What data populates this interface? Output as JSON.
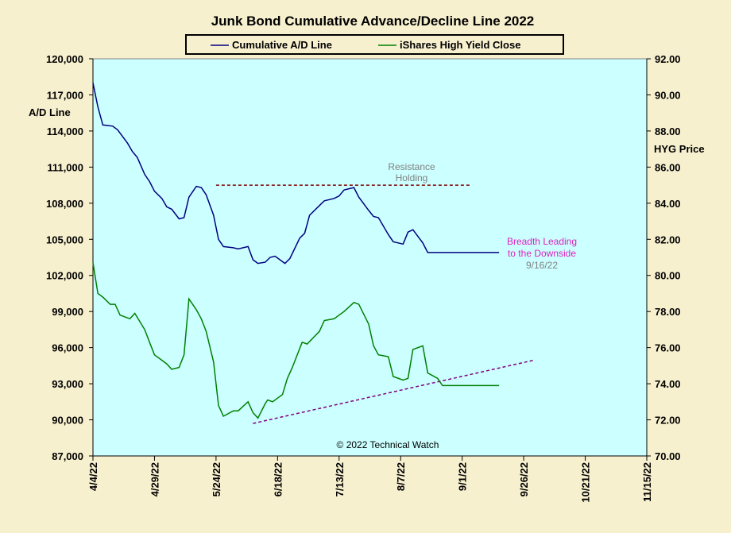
{
  "chart_data": {
    "type": "line",
    "title": "Junk Bond Cumulative Advance/Decline Line 2022",
    "x_ticks": [
      "4/4/22",
      "4/29/22",
      "5/24/22",
      "6/18/22",
      "7/13/22",
      "8/7/22",
      "9/1/22",
      "9/26/22",
      "10/21/22",
      "11/15/22"
    ],
    "xlim": [
      "4/4/22",
      "11/15/22"
    ],
    "left_axis": {
      "label": "A/D Line",
      "ylim": [
        87000,
        120000
      ],
      "ticks": [
        "87,000",
        "90,000",
        "93,000",
        "96,000",
        "99,000",
        "102,000",
        "105,000",
        "108,000",
        "111,000",
        "114,000",
        "117,000",
        "120,000"
      ]
    },
    "right_axis": {
      "label": "HYG Price",
      "ylim": [
        70,
        92
      ],
      "ticks": [
        "70.00",
        "72.00",
        "74.00",
        "76.00",
        "78.00",
        "80.00",
        "82.00",
        "84.00",
        "86.00",
        "88.00",
        "90.00",
        "92.00"
      ]
    },
    "grid": false,
    "legend_position": "top-center",
    "series": [
      {
        "name": "Cumulative A/D Line",
        "axis": "left",
        "color": "#000080",
        "x": [
          "4/4/22",
          "4/6/22",
          "4/8/22",
          "4/12/22",
          "4/14/22",
          "4/18/22",
          "4/20/22",
          "4/22/22",
          "4/25/22",
          "4/27/22",
          "4/29/22",
          "5/2/22",
          "5/4/22",
          "5/6/22",
          "5/9/22",
          "5/11/22",
          "5/13/22",
          "5/16/22",
          "5/18/22",
          "5/20/22",
          "5/23/22",
          "5/25/22",
          "5/27/22",
          "5/31/22",
          "6/2/22",
          "6/6/22",
          "6/8/22",
          "6/10/22",
          "6/13/22",
          "6/15/22",
          "6/17/22",
          "6/21/22",
          "6/23/22",
          "6/27/22",
          "6/29/22",
          "7/1/22",
          "7/5/22",
          "7/7/22",
          "7/11/22",
          "7/13/22",
          "7/15/22",
          "7/19/22",
          "7/21/22",
          "7/25/22",
          "7/27/22",
          "7/29/22",
          "8/2/22",
          "8/4/22",
          "8/8/22",
          "8/10/22",
          "8/12/22",
          "8/16/22",
          "8/18/22",
          "8/22/22",
          "8/24/22",
          "8/26/22",
          "8/30/22",
          "9/1/22",
          "9/6/22",
          "9/8/22",
          "9/12/22",
          "9/14/22",
          "9/16/22"
        ],
        "values": [
          118000,
          116000,
          114500,
          114400,
          114100,
          113000,
          112300,
          111800,
          110400,
          109800,
          109000,
          108400,
          107700,
          107500,
          106700,
          106800,
          108500,
          109400,
          109300,
          108700,
          107000,
          105000,
          104400,
          104300,
          104200,
          104400,
          103300,
          103000,
          103100,
          103500,
          103600,
          103000,
          103400,
          105100,
          105500,
          107000,
          107800,
          108200,
          108400,
          108600,
          109100,
          109300,
          108500,
          107400,
          106900,
          106800,
          105400,
          104800,
          104600,
          105600,
          105800,
          104700,
          103900,
          103900,
          103900,
          103900,
          103900,
          103900,
          103900,
          103900,
          103900,
          103900,
          103900
        ]
      },
      {
        "name": "iShares High Yield Close",
        "axis": "right",
        "color": "#008000",
        "x": [
          "4/4/22",
          "4/6/22",
          "4/8/22",
          "4/11/22",
          "4/13/22",
          "4/15/22",
          "4/19/22",
          "4/21/22",
          "4/25/22",
          "4/27/22",
          "4/29/22",
          "5/2/22",
          "5/4/22",
          "5/6/22",
          "5/9/22",
          "5/11/22",
          "5/13/22",
          "5/16/22",
          "5/18/22",
          "5/20/22",
          "5/23/22",
          "5/25/22",
          "5/27/22",
          "5/31/22",
          "6/2/22",
          "6/6/22",
          "6/8/22",
          "6/10/22",
          "6/13/22",
          "6/14/22",
          "6/16/22",
          "6/20/22",
          "6/22/22",
          "6/24/22",
          "6/28/22",
          "6/30/22",
          "7/5/22",
          "7/7/22",
          "7/11/22",
          "7/13/22",
          "7/15/22",
          "7/19/22",
          "7/21/22",
          "7/25/22",
          "7/27/22",
          "7/29/22",
          "8/2/22",
          "8/4/22",
          "8/8/22",
          "8/10/22",
          "8/12/22",
          "8/16/22",
          "8/18/22",
          "8/22/22",
          "8/24/22",
          "8/26/22",
          "8/30/22",
          "9/1/22",
          "9/6/22",
          "9/8/22",
          "9/12/22",
          "9/14/22",
          "9/16/22"
        ],
        "values": [
          80.7,
          79.0,
          78.8,
          78.4,
          78.4,
          77.8,
          77.6,
          77.9,
          77.0,
          76.3,
          75.6,
          75.3,
          75.1,
          74.8,
          74.9,
          75.6,
          78.7,
          78.1,
          77.6,
          76.9,
          75.2,
          72.8,
          72.2,
          72.5,
          72.5,
          73.0,
          72.4,
          72.1,
          72.9,
          73.1,
          73.0,
          73.4,
          74.3,
          74.9,
          76.3,
          76.2,
          76.9,
          77.5,
          77.6,
          77.8,
          78.0,
          78.5,
          78.4,
          77.3,
          76.1,
          75.6,
          75.5,
          74.4,
          74.2,
          74.3,
          75.9,
          76.1,
          74.6,
          74.3,
          73.9,
          73.9,
          73.9,
          73.9,
          73.9,
          73.9,
          73.9,
          73.9,
          73.9
        ]
      }
    ],
    "annotations": {
      "resistance": "Resistance\nHolding",
      "breadth_line1": "Breadth Leading",
      "breadth_line2": "to the Downside",
      "date": "9/16/22",
      "copyright": "© 2022 Technical Watch"
    },
    "colors": {
      "plot_background": "#ccffff",
      "page_background": "#f7f0cf",
      "resistance_line": "#800000",
      "support_line": "#800080",
      "breadth_text": "#e020c0"
    }
  }
}
